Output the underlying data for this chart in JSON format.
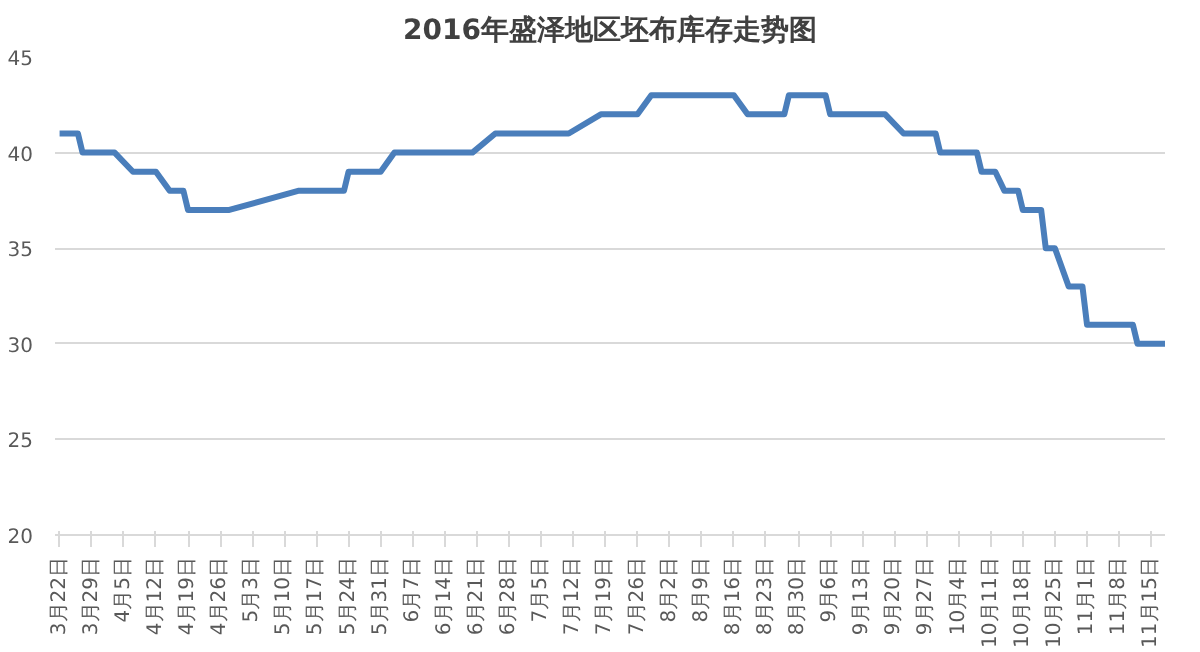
{
  "chart_data": {
    "type": "line",
    "title": "2016年盛泽地区坯布库存走势图",
    "x": [
      "2016-03-22",
      "2016-03-26",
      "2016-03-27",
      "2016-04-03",
      "2016-04-07",
      "2016-04-12",
      "2016-04-15",
      "2016-04-18",
      "2016-04-19",
      "2016-04-28",
      "2016-05-13",
      "2016-05-23",
      "2016-05-24",
      "2016-05-31",
      "2016-06-03",
      "2016-06-20",
      "2016-06-25",
      "2016-07-11",
      "2016-07-18",
      "2016-07-26",
      "2016-07-29",
      "2016-08-16",
      "2016-08-19",
      "2016-08-27",
      "2016-08-28",
      "2016-09-05",
      "2016-09-06",
      "2016-09-18",
      "2016-09-22",
      "2016-09-29",
      "2016-09-30",
      "2016-10-08",
      "2016-10-09",
      "2016-10-12",
      "2016-10-14",
      "2016-10-17",
      "2016-10-18",
      "2016-10-22",
      "2016-10-23",
      "2016-10-25",
      "2016-10-28",
      "2016-10-31",
      "2016-11-01",
      "2016-11-11",
      "2016-11-12",
      "2016-11-18"
    ],
    "series": [
      {
        "color": "#4a7ebb",
        "values": [
          41,
          41,
          40,
          40,
          39,
          39,
          38,
          38,
          37,
          37,
          38,
          38,
          39,
          39,
          40,
          40,
          41,
          41,
          42,
          42,
          43,
          43,
          42,
          42,
          43,
          43,
          42,
          42,
          41,
          41,
          40,
          40,
          39,
          39,
          38,
          38,
          37,
          37,
          35,
          35,
          33,
          33,
          31,
          31,
          30,
          30
        ]
      }
    ],
    "xlim": [
      "2016-03-21",
      "2016-11-18"
    ],
    "xticks": [
      {
        "value": "2016-03-22",
        "label": "3月22日"
      },
      {
        "value": "2016-03-29",
        "label": "3月29日"
      },
      {
        "value": "2016-04-05",
        "label": "4月5日"
      },
      {
        "value": "2016-04-12",
        "label": "4月12日"
      },
      {
        "value": "2016-04-19",
        "label": "4月19日"
      },
      {
        "value": "2016-04-26",
        "label": "4月26日"
      },
      {
        "value": "2016-05-03",
        "label": "5月3日"
      },
      {
        "value": "2016-05-10",
        "label": "5月10日"
      },
      {
        "value": "2016-05-17",
        "label": "5月17日"
      },
      {
        "value": "2016-05-24",
        "label": "5月24日"
      },
      {
        "value": "2016-05-31",
        "label": "5月31日"
      },
      {
        "value": "2016-06-07",
        "label": "6月7日"
      },
      {
        "value": "2016-06-14",
        "label": "6月14日"
      },
      {
        "value": "2016-06-21",
        "label": "6月21日"
      },
      {
        "value": "2016-06-28",
        "label": "6月28日"
      },
      {
        "value": "2016-07-05",
        "label": "7月5日"
      },
      {
        "value": "2016-07-12",
        "label": "7月12日"
      },
      {
        "value": "2016-07-19",
        "label": "7月19日"
      },
      {
        "value": "2016-07-26",
        "label": "7月26日"
      },
      {
        "value": "2016-08-02",
        "label": "8月2日"
      },
      {
        "value": "2016-08-09",
        "label": "8月9日"
      },
      {
        "value": "2016-08-16",
        "label": "8月16日"
      },
      {
        "value": "2016-08-23",
        "label": "8月23日"
      },
      {
        "value": "2016-08-30",
        "label": "8月30日"
      },
      {
        "value": "2016-09-06",
        "label": "9月6日"
      },
      {
        "value": "2016-09-13",
        "label": "9月13日"
      },
      {
        "value": "2016-09-20",
        "label": "9月20日"
      },
      {
        "value": "2016-09-27",
        "label": "9月27日"
      },
      {
        "value": "2016-10-04",
        "label": "10月4日"
      },
      {
        "value": "2016-10-11",
        "label": "10月11日"
      },
      {
        "value": "2016-10-18",
        "label": "10月18日"
      },
      {
        "value": "2016-10-25",
        "label": "10月25日"
      },
      {
        "value": "2016-11-01",
        "label": "11月1日"
      },
      {
        "value": "2016-11-08",
        "label": "11月8日"
      },
      {
        "value": "2016-11-15",
        "label": "11月15日"
      }
    ],
    "ylim": [
      20,
      45
    ],
    "yticks": [
      20,
      25,
      30,
      35,
      40,
      45
    ],
    "grid": "y"
  }
}
